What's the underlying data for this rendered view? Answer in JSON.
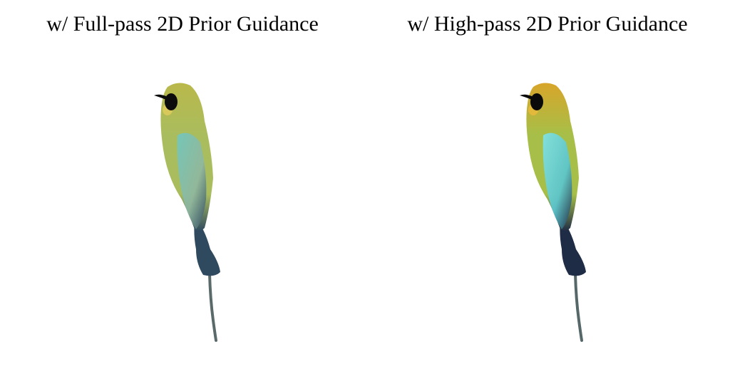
{
  "panels": [
    {
      "caption": "w/ Full-pass 2D Prior Guidance",
      "colors": {
        "head": "#b9b84a",
        "body": "#aabd5e",
        "wing": "#8fb7a0",
        "wing_highlight": "#6fc7c2",
        "tail": "#2f4a5f",
        "mask": "#0c0c0c",
        "throat": "#d9c85a",
        "stick": "#5a6a6a"
      }
    },
    {
      "caption": "w/ High-pass 2D Prior Guidance",
      "colors": {
        "head": "#d8a52a",
        "body": "#a7bf48",
        "wing": "#59c6d2",
        "wing_highlight": "#7fe3ea",
        "tail": "#1f2c45",
        "mask": "#0a0a0a",
        "throat": "#e2b93a",
        "stick": "#56676a"
      }
    }
  ]
}
